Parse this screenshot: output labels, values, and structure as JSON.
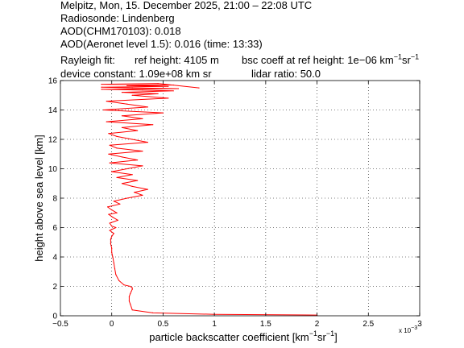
{
  "header": {
    "line1": "Melpitz, Mon, 15. December 2025, 21:00 – 22:08 UTC",
    "line2": "Radiosonde: Lindenberg",
    "line3": "AOD(CHM170103): 0.018",
    "line4": "AOD(Aeronet level 1.5): 0.016   (time: 13:33)",
    "rayleigh_label": "Rayleigh fit:",
    "ref_height": "ref height: 4105 m",
    "bsc_prefix": "bsc coeff at ref height: 1e−06 km",
    "bsc_unit_exp1": "−1",
    "bsc_unit_sr": "sr",
    "bsc_unit_exp2": "−1",
    "device_constant": "device constant: 1.09e+08 km sr",
    "lidar_ratio": "lidar ratio: 50.0"
  },
  "chart_data": {
    "type": "line",
    "xlabel_main": "particle backscatter coefficient [km",
    "xlabel_exp1": "−1",
    "xlabel_sr": "sr",
    "xlabel_exp2": "−1",
    "xlabel_close": "]",
    "ylabel": "height above sea level [km]",
    "x_multiplier": "x 10",
    "x_multiplier_exp": "−3",
    "xlim": [
      -0.5,
      3
    ],
    "ylim": [
      0,
      16
    ],
    "xticks": [
      "−0.5",
      "0",
      "0.5",
      "1",
      "1.5",
      "2",
      "2.5",
      "3"
    ],
    "yticks": [
      "0",
      "2",
      "4",
      "6",
      "8",
      "10",
      "12",
      "14",
      "16"
    ],
    "grid": true,
    "line_color": "#ff0000",
    "series": [
      {
        "x": [
          2.0,
          1.0,
          0.4,
          0.2,
          0.18,
          0.17,
          0.17,
          0.18,
          0.19,
          0.2,
          0.2,
          0.18,
          0.12,
          0.07,
          0.04,
          0.03,
          0.02,
          0.01,
          0.0,
          0.0,
          -0.01,
          -0.01,
          0.0,
          0.02,
          -0.02,
          0.04,
          0.0,
          -0.02,
          0.06,
          0.01,
          -0.03,
          0.05,
          0.0,
          -0.04,
          0.08,
          0.02,
          0.15,
          0.3,
          0.22,
          0.35,
          0.2,
          0.1,
          0.25,
          0.05,
          0.2,
          0.0,
          0.15,
          0.3,
          -0.02,
          0.25,
          0.1,
          -0.03,
          0.3,
          0.05,
          -0.02,
          0.35,
          0.2,
          0.05,
          -0.03,
          0.25,
          0.1,
          0.4,
          -0.05,
          0.3,
          0.1,
          0.5,
          -0.08,
          0.35,
          0.15,
          -0.05,
          0.55,
          0.2,
          0.45,
          0.1,
          0.6,
          0.3,
          -0.1,
          0.65,
          0.2,
          -0.1,
          0.55,
          0.15,
          0.6,
          -0.1,
          0.45,
          0.85
        ],
        "y": [
          0.05,
          0.1,
          0.2,
          0.4,
          0.8,
          1.0,
          1.3,
          1.5,
          1.65,
          1.8,
          1.9,
          2.0,
          2.1,
          2.4,
          2.8,
          3.2,
          3.6,
          4.0,
          4.3,
          4.6,
          4.9,
          5.2,
          5.4,
          5.6,
          5.8,
          6.0,
          6.1,
          6.3,
          6.5,
          6.7,
          6.9,
          7.0,
          7.2,
          7.4,
          7.6,
          7.8,
          8.0,
          8.2,
          8.4,
          8.6,
          8.8,
          9.0,
          9.2,
          9.4,
          9.6,
          9.8,
          10.0,
          10.2,
          10.4,
          10.6,
          10.8,
          11.0,
          11.2,
          11.4,
          11.6,
          11.8,
          12.0,
          12.2,
          12.4,
          12.6,
          12.8,
          13.0,
          13.2,
          13.4,
          13.6,
          13.8,
          14.0,
          14.2,
          14.4,
          14.6,
          14.8,
          15.0,
          15.1,
          15.2,
          15.3,
          15.35,
          15.4,
          15.45,
          15.5,
          15.55,
          15.6,
          15.65,
          15.7,
          15.75,
          15.8,
          15.5
        ]
      }
    ]
  }
}
